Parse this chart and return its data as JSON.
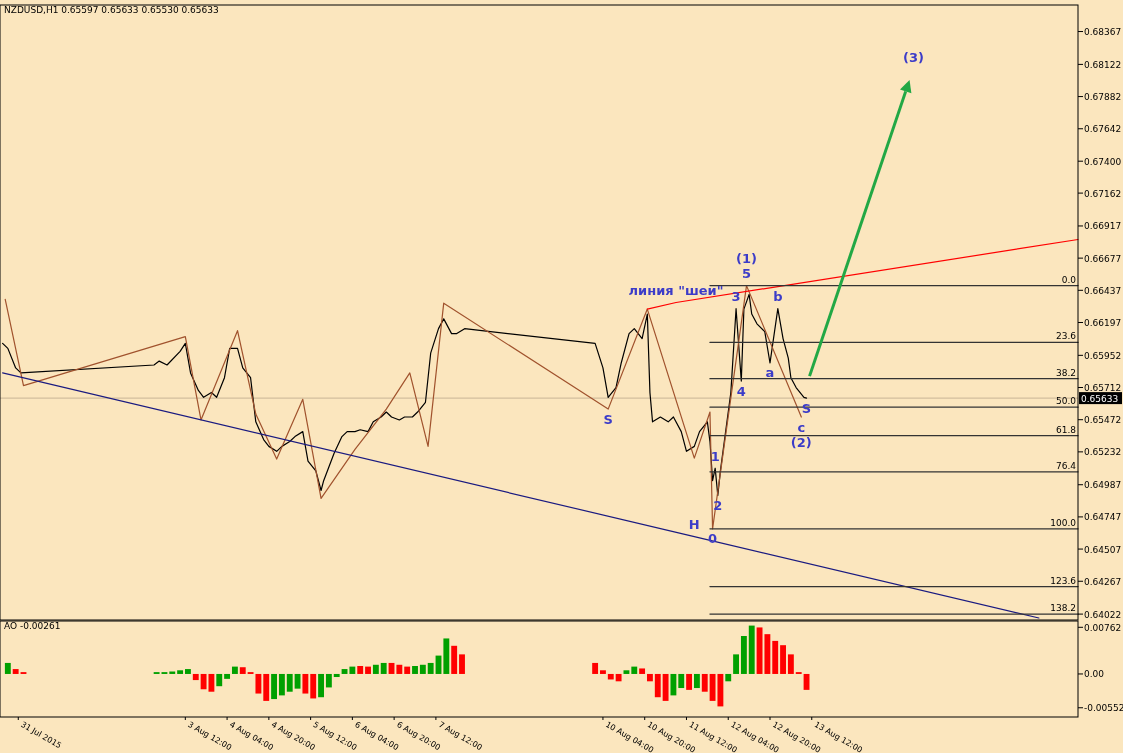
{
  "chart_data": [
    {
      "type": "line",
      "title": "NZDUSD,H1  0.65597 0.65633 0.65530 0.65633",
      "xlim": [
        "2015-07-31T13:00",
        "2015-08-17T18:00"
      ],
      "ylim": [
        0.63978,
        0.68565
      ],
      "yticks": [
        0.68367,
        0.68122,
        0.67882,
        0.67642,
        {
          "value": 0.674,
          "label": "0.67400"
        },
        0.67162,
        0.66917,
        0.66677,
        0.66437,
        0.66197,
        0.65952,
        0.65712,
        0.65472,
        0.65232,
        0.64987,
        0.64747,
        0.64507,
        0.64267,
        0.64022
      ],
      "tick_labels": "y",
      "series": [
        {
          "color": "#000000",
          "x": [
            "2015-07-31T14:00",
            "2015-07-31T16:00",
            "2015-07-31T19:00",
            "2015-07-31T21:00",
            "2015-08-03T00:00",
            "2015-08-03T02:00",
            "2015-08-03T05:00",
            "2015-08-03T10:00",
            "2015-08-03T12:00",
            "2015-08-03T14:00",
            "2015-08-03T17:00",
            "2015-08-03T19:00",
            "2015-08-03T22:00",
            "2015-08-04T00:00",
            "2015-08-04T03:00",
            "2015-08-04T05:00",
            "2015-08-04T08:00",
            "2015-08-04T10:00",
            "2015-08-04T13:00",
            "2015-08-04T15:00",
            "2015-08-04T18:00",
            "2015-08-04T20:00",
            "2015-08-04T23:00",
            "2015-08-05T01:00",
            "2015-08-05T04:00",
            "2015-08-05T06:00",
            "2015-08-05T09:00",
            "2015-08-05T11:00",
            "2015-08-05T14:00",
            "2015-08-05T16:00",
            "2015-08-05T17:00",
            "2015-08-05T21:00",
            "2015-08-06T00:00",
            "2015-08-06T02:00",
            "2015-08-06T05:00",
            "2015-08-06T07:00",
            "2015-08-06T10:00",
            "2015-08-06T12:00",
            "2015-08-06T15:00",
            "2015-08-06T17:00",
            "2015-08-06T19:00",
            "2015-08-06T22:00",
            "2015-08-07T00:00",
            "2015-08-07T03:00",
            "2015-08-07T05:00",
            "2015-08-07T08:00",
            "2015-08-07T10:00",
            "2015-08-07T13:00",
            "2015-08-07T15:00",
            "2015-08-07T18:00",
            "2015-08-07T20:00",
            "2015-08-07T23:00",
            "2015-08-10T01:00",
            "2015-08-10T04:00",
            "2015-08-10T06:00",
            "2015-08-10T09:00",
            "2015-08-10T11:00",
            "2015-08-10T14:00",
            "2015-08-10T16:00",
            "2015-08-10T19:00",
            "2015-08-10T21:00",
            "2015-08-10T22:00",
            "2015-08-10T23:00",
            "2015-08-11T02:00",
            "2015-08-11T05:00",
            "2015-08-11T07:00",
            "2015-08-11T10:00",
            "2015-08-11T12:00",
            "2015-08-11T15:00",
            "2015-08-11T17:00",
            "2015-08-11T20:00",
            "2015-08-11T21:00",
            "2015-08-11T22:00",
            "2015-08-11T23:00",
            "2015-08-12T00:00",
            "2015-08-12T01:00",
            "2015-08-12T03:00",
            "2015-08-12T05:00",
            "2015-08-12T07:00",
            "2015-08-12T09:00",
            "2015-08-12T10:00",
            "2015-08-12T12:00",
            "2015-08-12T13:00",
            "2015-08-12T15:00",
            "2015-08-12T18:00",
            "2015-08-12T20:00",
            "2015-08-12T23:00",
            "2015-08-13T01:00",
            "2015-08-13T03:00",
            "2015-08-13T04:00",
            "2015-08-13T06:00",
            "2015-08-13T09:00",
            "2015-08-13T10:00"
          ],
          "values": [
            0.66041,
            0.66004,
            0.65858,
            0.65821,
            0.6588,
            0.65909,
            0.6588,
            0.65982,
            0.66041,
            0.65821,
            0.6569,
            0.65639,
            0.65675,
            0.65639,
            0.65785,
            0.66004,
            0.66004,
            0.65858,
            0.65785,
            0.65456,
            0.65324,
            0.65273,
            0.65236,
            0.65273,
            0.65309,
            0.65346,
            0.65383,
            0.65163,
            0.6509,
            0.64944,
            0.65017,
            0.65222,
            0.65346,
            0.65383,
            0.65383,
            0.65397,
            0.65383,
            0.65456,
            0.65492,
            0.65529,
            0.65492,
            0.6547,
            0.65492,
            0.65492,
            0.65529,
            0.65602,
            0.65968,
            0.66151,
            0.66224,
            0.66114,
            0.66114,
            0.66151,
            0.66041,
            0.65858,
            0.65639,
            0.65712,
            0.65895,
            0.66114,
            0.66151,
            0.66077,
            0.6626,
            0.65675,
            0.65456,
            0.65492,
            0.65456,
            0.65492,
            0.65383,
            0.65236,
            0.65273,
            0.65383,
            0.65456,
            0.65309,
            0.65017,
            0.6511,
            0.64907,
            0.6509,
            0.65383,
            0.65675,
            0.663,
            0.6576,
            0.66297,
            0.66407,
            0.6626,
            0.66187,
            0.66129,
            0.65895,
            0.663,
            0.66077,
            0.65931,
            0.65785,
            0.65712,
            0.65639,
            0.65633
          ]
        },
        {
          "color": "#a0522d",
          "x": [
            "2015-07-31T15:00",
            "2015-07-31T22:00",
            "2015-08-03T12:00",
            "2015-08-03T18:00",
            "2015-08-04T08:00",
            "2015-08-04T15:00",
            "2015-08-04T23:00",
            "2015-08-05T09:00",
            "2015-08-05T16:00",
            "2015-08-06T05:00",
            "2015-08-06T17:00",
            "2015-08-07T02:00",
            "2015-08-07T09:00",
            "2015-08-07T15:00",
            "2015-08-10T06:00",
            "2015-08-10T21:00",
            "2015-08-11T15:00",
            "2015-08-11T21:00",
            "2015-08-11T22:00",
            "2015-08-12T11:00",
            "2015-08-13T08:00"
          ],
          "values": [
            0.6637,
            0.65726,
            0.66092,
            0.6547,
            0.66136,
            0.65514,
            0.65178,
            0.65624,
            0.64885,
            0.65251,
            0.65551,
            0.65821,
            0.65273,
            0.66341,
            0.65551,
            0.66297,
            0.65185,
            0.65529,
            0.64658,
            0.66472,
            0.65492
          ]
        },
        {
          "color": "#ff0000",
          "x": [
            "2015-08-10T21:00",
            "2015-08-11T08:00",
            "2015-08-17T18:00"
          ],
          "values": [
            0.66297,
            0.66346,
            0.66816
          ]
        },
        {
          "color": "#1a1a80",
          "x": [
            "2015-07-31T14:00",
            "2015-08-11T15:00",
            "2015-08-17T03:00"
          ],
          "values": [
            0.65821,
            0.646,
            0.63993
          ]
        },
        {
          "name": "0.0",
          "color": "#333333",
          "x": [
            "2015-08-11T21:00",
            "2015-08-17T18:00"
          ],
          "values": [
            0.66472,
            0.66472
          ]
        },
        {
          "name": "23.6",
          "color": "#333333",
          "x": [
            "2015-08-11T21:00",
            "2015-08-17T18:00"
          ],
          "values": [
            0.66048,
            0.66048
          ]
        },
        {
          "name": "38.2",
          "color": "#333333",
          "x": [
            "2015-08-11T21:00",
            "2015-08-17T18:00"
          ],
          "values": [
            0.65778,
            0.65778
          ]
        },
        {
          "name": "50.0",
          "color": "#333333",
          "x": [
            "2015-08-11T21:00",
            "2015-08-17T18:00"
          ],
          "values": [
            0.65565,
            0.65565
          ]
        },
        {
          "name": "61.8",
          "color": "#333333",
          "x": [
            "2015-08-11T21:00",
            "2015-08-17T18:00"
          ],
          "values": [
            0.65353,
            0.65353
          ]
        },
        {
          "name": "76.4",
          "color": "#333333",
          "x": [
            "2015-08-11T21:00",
            "2015-08-17T18:00"
          ],
          "values": [
            0.65083,
            0.65083
          ]
        },
        {
          "name": "100.0",
          "color": "#333333",
          "x": [
            "2015-08-11T21:00",
            "2015-08-17T18:00"
          ],
          "values": [
            0.64658,
            0.64658
          ]
        },
        {
          "name": "123.6",
          "color": "#333333",
          "x": [
            "2015-08-11T21:00",
            "2015-08-17T18:00"
          ],
          "values": [
            0.64227,
            0.64227
          ]
        },
        {
          "name": "138.2",
          "color": "#333333",
          "x": [
            "2015-08-11T21:00",
            "2015-08-17T18:00"
          ],
          "values": [
            0.64022,
            0.64022
          ]
        }
      ],
      "ref_lines": [
        {
          "axis": "y",
          "value": 0.65633,
          "label": "0.65633",
          "color": "#c8b496"
        }
      ],
      "annotations": [
        {
          "text": "линия \"шеи\"",
          "x": "2015-08-11T08:00",
          "y": 0.66346
        },
        {
          "text": "5",
          "x": "2015-08-12T11:00",
          "y": 0.66472
        },
        {
          "text": "(1)",
          "x": "2015-08-12T11:00",
          "y": 0.66472
        },
        {
          "text": "3",
          "x": "2015-08-12T07:00",
          "y": 0.663
        },
        {
          "text": "4",
          "x": "2015-08-12T09:00",
          "y": 0.6576
        },
        {
          "text": "a",
          "x": "2015-08-12T20:00",
          "y": 0.65895
        },
        {
          "text": "b",
          "x": "2015-08-12T23:00",
          "y": 0.663
        },
        {
          "text": "c",
          "x": "2015-08-13T08:00",
          "y": 0.65492
        },
        {
          "text": "(2)",
          "x": "2015-08-13T08:00",
          "y": 0.65492
        },
        {
          "text": "S",
          "x": "2015-08-10T06:00",
          "y": 0.65551
        },
        {
          "text": "S",
          "x": "2015-08-13T10:00",
          "y": 0.65633
        },
        {
          "text": "H",
          "x": "2015-08-11T15:00",
          "y": 0.646
        },
        {
          "text": "0",
          "x": "2015-08-11T22:00",
          "y": 0.64658
        },
        {
          "text": "1",
          "x": "2015-08-11T23:00",
          "y": 0.6511
        },
        {
          "text": "2",
          "x": "2015-08-12T00:00",
          "y": 0.64907
        },
        "(3)"
      ]
    },
    {
      "type": "bar",
      "title": "AO -0.00261",
      "xlim": [
        "2015-07-31T13:00",
        "2015-08-17T18:00"
      ],
      "ylim": [
        -0.00703,
        0.00865
      ],
      "yticks": [
        0.00762,
        {
          "value": 0,
          "label": "0.00"
        },
        -0.00552
      ],
      "xticks": [
        {
          "value": "2015-07-31T20:00",
          "label": "31 Jul 2015"
        },
        {
          "value": "2015-08-03T12:00",
          "label": "3 Aug 12:00"
        },
        {
          "value": "2015-08-04T04:00",
          "label": "4 Aug 04:00"
        },
        {
          "value": "2015-08-04T20:00",
          "label": "4 Aug 20:00"
        },
        {
          "value": "2015-08-05T12:00",
          "label": "5 Aug 12:00"
        },
        {
          "value": "2015-08-06T04:00",
          "label": "6 Aug 04:00"
        },
        {
          "value": "2015-08-06T20:00",
          "label": "6 Aug 20:00"
        },
        {
          "value": "2015-08-07T12:00",
          "label": "7 Aug 12:00"
        },
        {
          "value": "2015-08-10T04:00",
          "label": "10 Aug 04:00"
        },
        {
          "value": "2015-08-10T20:00",
          "label": "10 Aug 20:00"
        },
        {
          "value": "2015-08-11T12:00",
          "label": "11 Aug 12:00"
        },
        {
          "value": "2015-08-12T04:00",
          "label": "12 Aug 04:00"
        },
        {
          "value": "2015-08-12T20:00",
          "label": "12 Aug 20:00"
        },
        {
          "value": "2015-08-13T12:00",
          "label": "13 Aug 12:00"
        }
      ],
      "x": [
        "2015-07-31T16:00",
        "2015-07-31T19:00",
        "2015-07-31T22:00",
        "2015-08-03T01:00",
        "2015-08-03T04:00",
        "2015-08-03T07:00",
        "2015-08-03T10:00",
        "2015-08-03T13:00",
        "2015-08-03T16:00",
        "2015-08-03T19:00",
        "2015-08-03T22:00",
        "2015-08-04T01:00",
        "2015-08-04T04:00",
        "2015-08-04T07:00",
        "2015-08-04T10:00",
        "2015-08-04T13:00",
        "2015-08-04T16:00",
        "2015-08-04T19:00",
        "2015-08-04T22:00",
        "2015-08-05T01:00",
        "2015-08-05T04:00",
        "2015-08-05T07:00",
        "2015-08-05T10:00",
        "2015-08-05T13:00",
        "2015-08-05T16:00",
        "2015-08-05T19:00",
        "2015-08-05T22:00",
        "2015-08-06T01:00",
        "2015-08-06T04:00",
        "2015-08-06T07:00",
        "2015-08-06T10:00",
        "2015-08-06T13:00",
        "2015-08-06T16:00",
        "2015-08-06T19:00",
        "2015-08-06T22:00",
        "2015-08-07T01:00",
        "2015-08-07T04:00",
        "2015-08-07T07:00",
        "2015-08-07T10:00",
        "2015-08-07T13:00",
        "2015-08-07T16:00",
        "2015-08-07T19:00",
        "2015-08-07T22:00",
        "2015-08-10T01:00",
        "2015-08-10T04:00",
        "2015-08-10T07:00",
        "2015-08-10T10:00",
        "2015-08-10T13:00",
        "2015-08-10T16:00",
        "2015-08-10T19:00",
        "2015-08-10T22:00",
        "2015-08-11T01:00",
        "2015-08-11T04:00",
        "2015-08-11T07:00",
        "2015-08-11T10:00",
        "2015-08-11T13:00",
        "2015-08-11T16:00",
        "2015-08-11T19:00",
        "2015-08-11T22:00",
        "2015-08-12T01:00",
        "2015-08-12T04:00",
        "2015-08-12T07:00",
        "2015-08-12T10:00",
        "2015-08-12T13:00",
        "2015-08-12T16:00",
        "2015-08-12T19:00",
        "2015-08-12T22:00",
        "2015-08-13T01:00",
        "2015-08-13T04:00",
        "2015-08-13T07:00",
        "2015-08-13T10:00"
      ],
      "values": [
        0.0018,
        0.0008,
        0.0003,
        0.0003,
        0.0003,
        0.0004,
        0.0006,
        0.0008,
        -0.001,
        -0.0025,
        -0.0029,
        -0.002,
        -0.0008,
        0.0012,
        0.0011,
        0.0003,
        -0.0032,
        -0.0044,
        -0.0041,
        -0.0035,
        -0.0029,
        -0.0024,
        -0.0032,
        -0.004,
        -0.0038,
        -0.0022,
        -0.0005,
        0.0008,
        0.0012,
        0.0013,
        0.0012,
        0.0015,
        0.0018,
        0.0018,
        0.0015,
        0.0012,
        0.0013,
        0.0015,
        0.0018,
        0.003,
        0.0058,
        0.0046,
        0.0032,
        0.0018,
        0.0006,
        -0.0009,
        -0.0012,
        0.0006,
        0.0012,
        0.0009,
        -0.0012,
        -0.0038,
        -0.0044,
        -0.0035,
        -0.0023,
        -0.0026,
        -0.0023,
        -0.0029,
        -0.0044,
        -0.0053,
        -0.0012,
        0.0032,
        0.0062,
        0.0079,
        0.0076,
        0.0065,
        0.0054,
        0.0047,
        0.0032,
        0.0003,
        -0.0026
      ],
      "colors": [
        "#00a000",
        "#ff0000",
        "#ff0000",
        "#00a000",
        "#00a000",
        "#00a000",
        "#00a000",
        "#00a000",
        "#ff0000",
        "#ff0000",
        "#ff0000",
        "#00a000",
        "#00a000",
        "#00a000",
        "#ff0000",
        "#ff0000",
        "#ff0000",
        "#ff0000",
        "#00a000",
        "#00a000",
        "#00a000",
        "#00a000",
        "#ff0000",
        "#ff0000",
        "#00a000",
        "#00a000",
        "#00a000",
        "#00a000",
        "#00a000",
        "#ff0000",
        "#ff0000",
        "#00a000",
        "#00a000",
        "#ff0000",
        "#ff0000",
        "#ff0000",
        "#00a000",
        "#00a000",
        "#00a000",
        "#00a000",
        "#00a000",
        "#ff0000",
        "#ff0000",
        "#ff0000",
        "#ff0000",
        "#ff0000",
        "#ff0000",
        "#00a000",
        "#00a000",
        "#ff0000",
        "#ff0000",
        "#ff0000",
        "#ff0000",
        "#00a000",
        "#00a000",
        "#ff0000",
        "#00a000",
        "#ff0000",
        "#ff0000",
        "#ff0000",
        "#00a000",
        "#00a000",
        "#00a000",
        "#00a000",
        "#ff0000",
        "#ff0000",
        "#ff0000",
        "#ff0000",
        "#ff0000",
        "#ff0000",
        "#ff0000"
      ]
    }
  ]
}
